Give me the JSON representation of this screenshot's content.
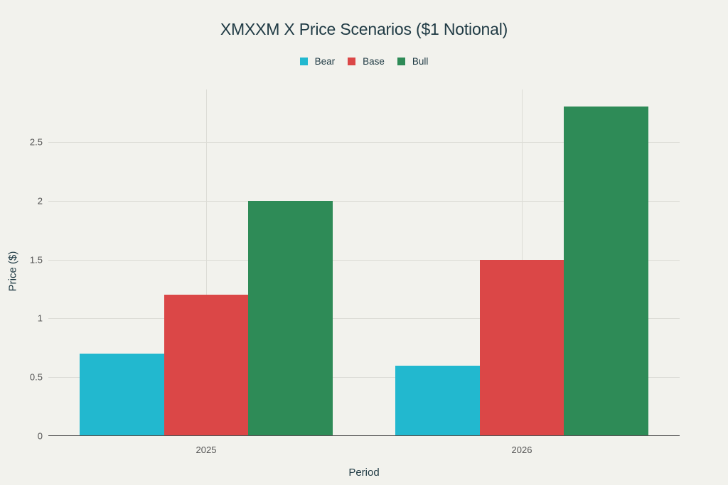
{
  "chart_data": {
    "type": "bar",
    "title": "XMXXM X Price Scenarios ($1 Notional)",
    "xlabel": "Period",
    "ylabel": "Price ($)",
    "categories": [
      "2025",
      "2026"
    ],
    "series": [
      {
        "name": "Bear",
        "color": "#22b8cf",
        "values": [
          0.7,
          0.6
        ]
      },
      {
        "name": "Base",
        "color": "#db4747",
        "values": [
          1.2,
          1.5
        ]
      },
      {
        "name": "Bull",
        "color": "#2e8b57",
        "values": [
          2.0,
          2.8
        ]
      }
    ],
    "yticks": [
      "0",
      "0.5",
      "1",
      "1.5",
      "2",
      "2.5"
    ],
    "ylim": [
      0,
      2.95
    ],
    "grid": true,
    "legend_position": "top-center"
  }
}
